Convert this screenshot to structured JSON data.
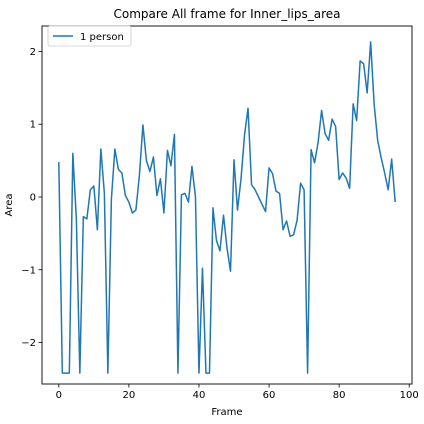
{
  "chart_data": {
    "type": "line",
    "title": "Compare All frame for Inner_lips_area",
    "xlabel": "Frame",
    "ylabel": "Area",
    "xlim": [
      -4.8,
      100.8
    ],
    "ylim": [
      -2.57,
      2.35
    ],
    "xticks": [
      0,
      20,
      40,
      60,
      80,
      100
    ],
    "xtick_labels": [
      "0",
      "20",
      "40",
      "60",
      "80",
      "100"
    ],
    "yticks": [
      -2,
      -1,
      0,
      1,
      2
    ],
    "ytick_labels": [
      "−2",
      "−1",
      "0",
      "1",
      "2"
    ],
    "grid": false,
    "legend_position": "upper-left",
    "series": [
      {
        "name": "1 person",
        "color": "#1f77b4",
        "x": [
          0,
          1,
          2,
          3,
          4,
          5,
          6,
          7,
          8,
          9,
          10,
          11,
          12,
          13,
          14,
          15,
          16,
          17,
          18,
          19,
          20,
          21,
          22,
          23,
          24,
          25,
          26,
          27,
          28,
          29,
          30,
          31,
          32,
          33,
          34,
          35,
          36,
          37,
          38,
          39,
          40,
          41,
          42,
          43,
          44,
          45,
          46,
          47,
          48,
          49,
          50,
          51,
          52,
          53,
          54,
          55,
          56,
          57,
          58,
          59,
          60,
          61,
          62,
          63,
          64,
          65,
          66,
          67,
          68,
          69,
          70,
          71,
          72,
          73,
          74,
          75,
          76,
          77,
          78,
          79,
          80,
          81,
          82,
          83,
          84,
          85,
          86,
          87,
          88,
          89,
          90,
          91,
          92,
          93,
          94,
          95,
          96
        ],
        "y": [
          0.48,
          -2.42,
          -2.42,
          -2.42,
          0.6,
          -0.3,
          -2.42,
          -0.27,
          -0.3,
          0.1,
          0.15,
          -0.45,
          0.66,
          0.05,
          -2.42,
          -0.03,
          0.66,
          0.38,
          0.33,
          0.02,
          -0.07,
          -0.22,
          -0.18,
          0.3,
          0.99,
          0.5,
          0.35,
          0.55,
          0.02,
          0.25,
          -0.22,
          0.64,
          0.43,
          0.86,
          -2.42,
          0.03,
          0.05,
          -0.07,
          0.42,
          0.0,
          -2.42,
          -0.98,
          -2.42,
          -2.42,
          -0.15,
          -0.6,
          -0.74,
          -0.25,
          -0.7,
          -1.02,
          0.51,
          -0.18,
          0.25,
          0.85,
          1.22,
          0.17,
          0.1,
          0.0,
          -0.1,
          -0.2,
          0.4,
          0.32,
          0.08,
          0.05,
          -0.45,
          -0.33,
          -0.54,
          -0.52,
          -0.32,
          0.19,
          0.1,
          -2.42,
          0.65,
          0.47,
          0.75,
          1.19,
          0.87,
          0.78,
          1.07,
          0.97,
          0.24,
          0.33,
          0.26,
          0.12,
          1.28,
          1.05,
          1.87,
          1.83,
          1.43,
          2.13,
          1.27,
          0.78,
          0.54,
          0.33,
          0.1,
          0.52,
          -0.07
        ]
      }
    ]
  }
}
